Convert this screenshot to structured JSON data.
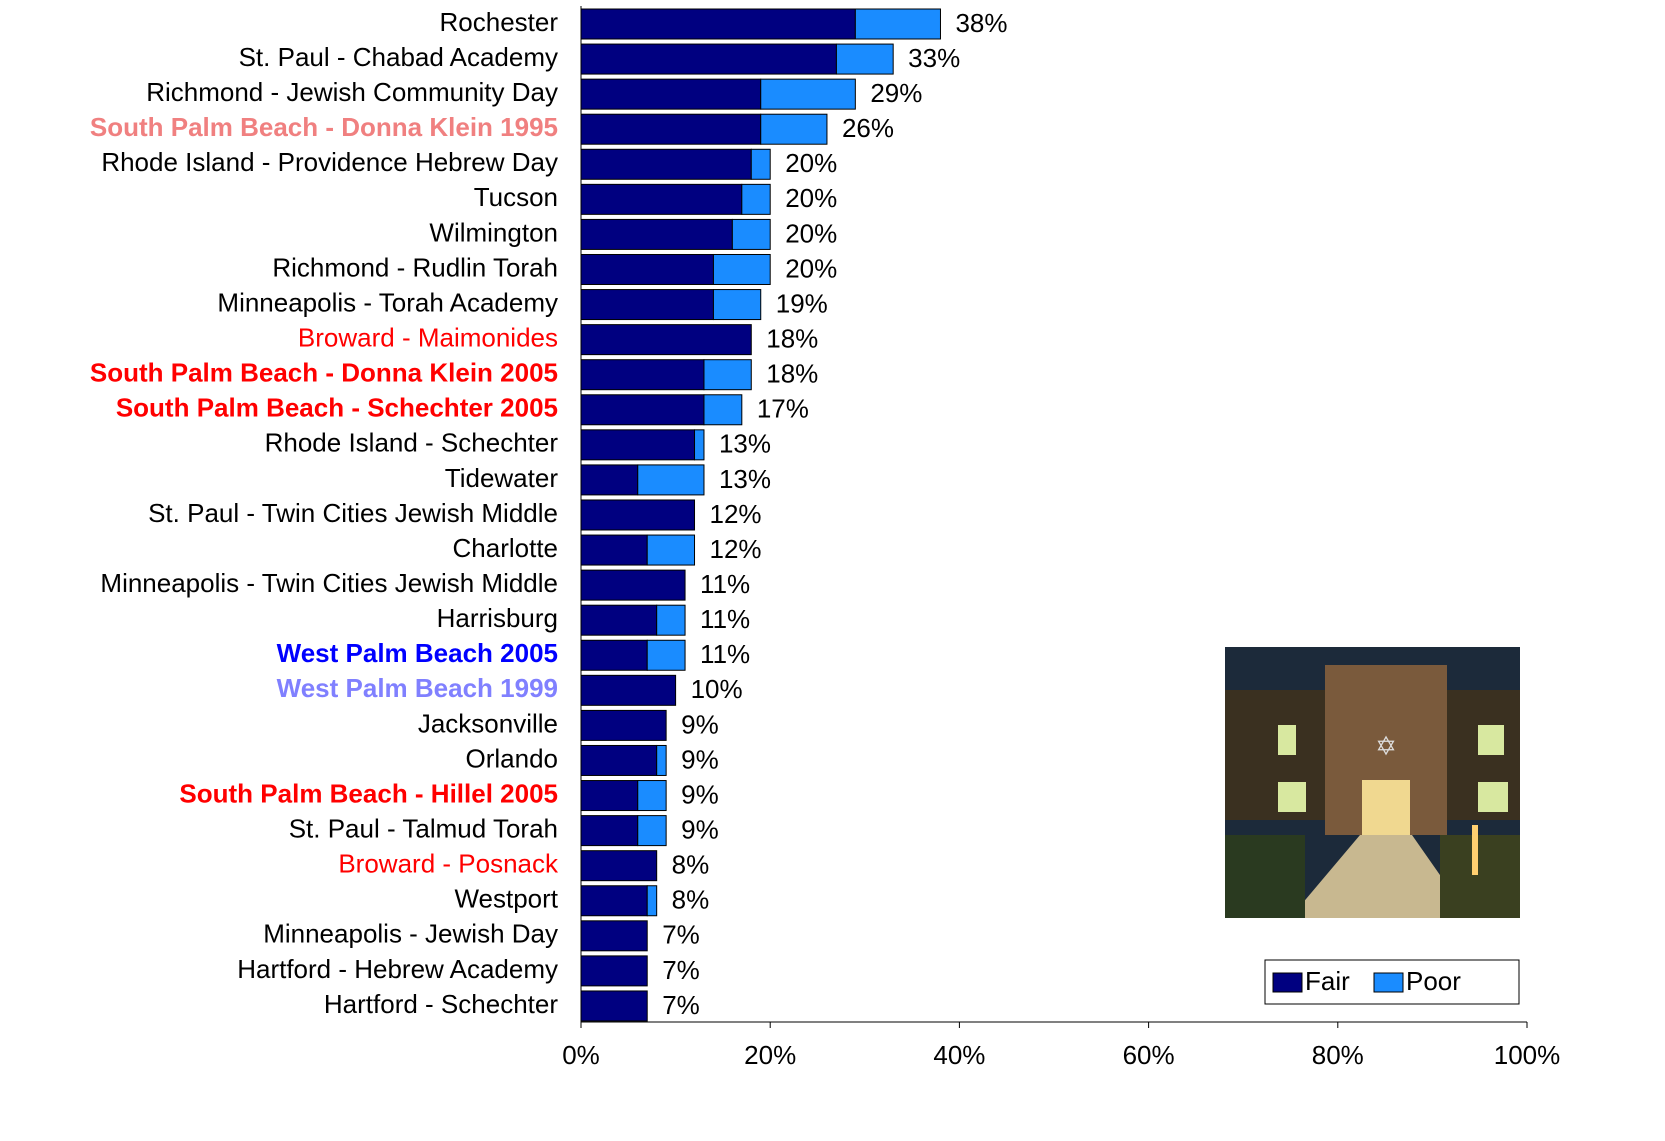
{
  "chart_data": {
    "type": "stacked-bar-horizontal",
    "categories": [
      "Rochester",
      "St. Paul - Chabad Academy",
      "Richmond - Jewish Community Day",
      "South Palm Beach - Donna Klein 1995",
      "Rhode Island - Providence Hebrew Day",
      "Tucson",
      "Wilmington",
      "Richmond - Rudlin Torah",
      "Minneapolis - Torah Academy",
      "Broward - Maimonides",
      "South Palm Beach - Donna Klein 2005",
      "South Palm Beach - Schechter 2005",
      "Rhode Island - Schechter",
      "Tidewater",
      "St. Paul - Twin Cities Jewish Middle",
      "Charlotte",
      "Minneapolis - Twin Cities Jewish Middle",
      "Harrisburg",
      "West Palm Beach 2005",
      "West Palm Beach 1999",
      "Jacksonville",
      "Orlando",
      "South Palm Beach - Hillel 2005",
      "St. Paul - Talmud Torah",
      "Broward - Posnack",
      "Westport",
      "Minneapolis - Jewish Day",
      "Hartford - Hebrew Academy",
      "Hartford - Schechter"
    ],
    "category_colors": [
      "#000000",
      "#000000",
      "#000000",
      "#f08080",
      "#000000",
      "#000000",
      "#000000",
      "#000000",
      "#000000",
      "#ff0000",
      "#ff0000",
      "#ff0000",
      "#000000",
      "#000000",
      "#000000",
      "#000000",
      "#000000",
      "#000000",
      "#0000ff",
      "#8080ff",
      "#000000",
      "#000000",
      "#ff0000",
      "#000000",
      "#ff0000",
      "#000000",
      "#000000",
      "#000000",
      "#000000"
    ],
    "category_bold": [
      false,
      false,
      false,
      true,
      false,
      false,
      false,
      false,
      false,
      false,
      true,
      true,
      false,
      false,
      false,
      false,
      false,
      false,
      true,
      true,
      false,
      false,
      true,
      false,
      false,
      false,
      false,
      false,
      false
    ],
    "series": [
      {
        "name": "Fair",
        "color": "#000080",
        "values": [
          29,
          27,
          19,
          19,
          18,
          17,
          16,
          14,
          14,
          18,
          13,
          13,
          12,
          6,
          12,
          7,
          11,
          8,
          7,
          10,
          9,
          8,
          6,
          6,
          8,
          7,
          7,
          7,
          7
        ]
      },
      {
        "name": "Poor",
        "color": "#1a8cff",
        "values": [
          9,
          6,
          10,
          7,
          2,
          3,
          4,
          6,
          5,
          0,
          5,
          4,
          1,
          7,
          0,
          5,
          0,
          3,
          4,
          0,
          0,
          1,
          3,
          3,
          0,
          1,
          0,
          0,
          0
        ]
      }
    ],
    "total_labels": [
      "38%",
      "33%",
      "29%",
      "26%",
      "20%",
      "20%",
      "20%",
      "20%",
      "19%",
      "18%",
      "18%",
      "17%",
      "13%",
      "13%",
      "12%",
      "12%",
      "11%",
      "11%",
      "11%",
      "10%",
      "9%",
      "9%",
      "9%",
      "9%",
      "8%",
      "8%",
      "7%",
      "7%",
      "7%"
    ],
    "xlim": [
      0,
      100
    ],
    "xticks": [
      {
        "value": 0,
        "label": "0%"
      },
      {
        "value": 20,
        "label": "20%"
      },
      {
        "value": 40,
        "label": "40%"
      },
      {
        "value": 60,
        "label": "60%"
      },
      {
        "value": 80,
        "label": "80%"
      },
      {
        "value": 100,
        "label": "100%"
      }
    ],
    "legend": "bottom-right"
  }
}
